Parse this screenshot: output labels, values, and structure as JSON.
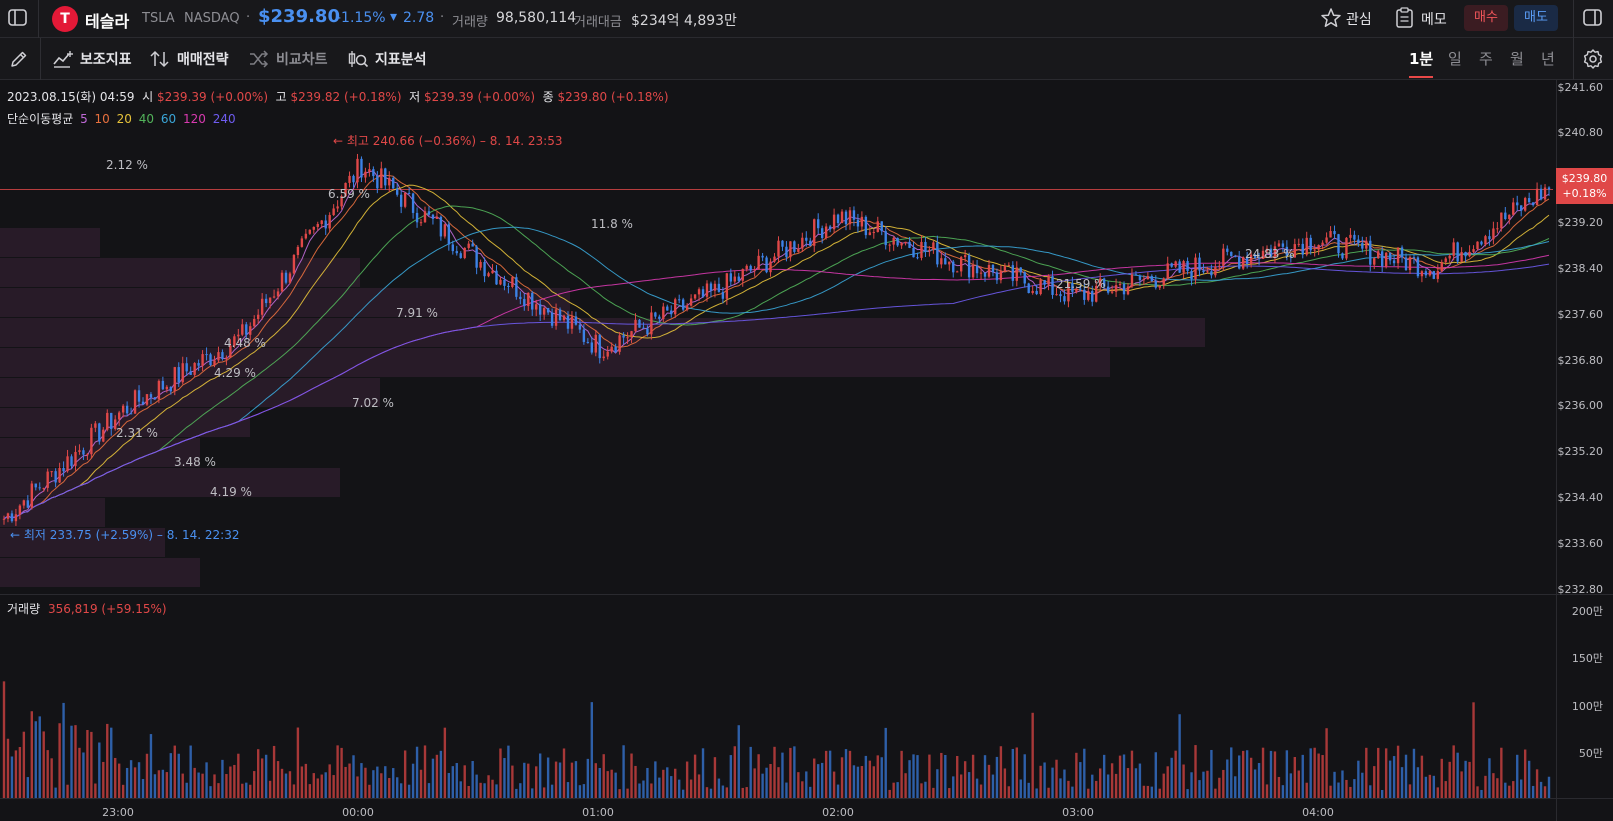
{
  "header": {
    "stock_name": "테슬라",
    "ticker": "TSLA",
    "exchange": "NASDAQ",
    "separator": "·",
    "price": "$239.80",
    "change_pct": "-1.15%",
    "change_arrow": "▾",
    "change_abs": "2.78",
    "volume_label": "거래량",
    "volume_value": "98,580,114",
    "turnover_label": "거래대금",
    "turnover_value": "$234억 4,893만",
    "favorite_label": "관심",
    "memo_label": "메모",
    "buy_label": "매수",
    "sell_label": "매도",
    "logo_letter": "T"
  },
  "toolbar": {
    "indicators_label": "보조지표",
    "strategy_label": "매매전략",
    "compare_label": "비교차트",
    "analysis_label": "지표분석",
    "timeframes": [
      "1분",
      "일",
      "주",
      "월",
      "년"
    ],
    "active_timeframe": "1분"
  },
  "ohlc": {
    "date": "2023.08.15(화) 04:59",
    "open_label": "시",
    "open": "$239.39 (+0.00%)",
    "high_label": "고",
    "high": "$239.82 (+0.18%)",
    "low_label": "저",
    "low": "$239.39 (+0.00%)",
    "close_label": "종",
    "close": "$239.80 (+0.18%)"
  },
  "ma_legend": {
    "label": "단순이동평균",
    "periods": [
      "5",
      "10",
      "20",
      "40",
      "60",
      "120",
      "240"
    ],
    "colors": [
      "#c06ad8",
      "#e8703e",
      "#e6c23a",
      "#52b35a",
      "#3aa6d8",
      "#d83ab0",
      "#6f5cf0"
    ]
  },
  "annotations": {
    "high_marker": "← 최고 240.66 (−0.36%) – 8. 14. 23:53",
    "low_marker": "← 최저 233.75 (+2.59%) – 8. 14. 22:32",
    "price_tag_price": "$239.80",
    "price_tag_pct": "+0.18%"
  },
  "volume_profile": {
    "labels": [
      "2.12 %",
      "6.59 %",
      "11.8 %",
      "24.83 %",
      "21.59 %",
      "7.91 %",
      "4.48 %",
      "4.29 %",
      "7.02 %",
      "2.31 %",
      "3.48 %",
      "4.19 %"
    ]
  },
  "volume_panel": {
    "label": "거래량",
    "value": "356,819 (+59.15%)",
    "axis": [
      "200만",
      "150만",
      "100만",
      "50만"
    ]
  },
  "price_axis": [
    "$241.60",
    "$240.80",
    "$239.20",
    "$238.40",
    "$237.60",
    "$236.80",
    "$236.00",
    "$235.20",
    "$234.40",
    "$233.60",
    "$232.80"
  ],
  "time_axis": [
    "23:00",
    "00:00",
    "01:00",
    "02:00",
    "03:00",
    "04:00"
  ],
  "colors": {
    "up": "#e04848",
    "down": "#3c82e6",
    "price_blue": "#4a90f0",
    "background": "#131316"
  },
  "chart_data": {
    "type": "candlestick",
    "symbol": "TSLA",
    "interval": "1분",
    "price_range": [
      232.8,
      241.6
    ],
    "x": [
      "22:30",
      "23:00",
      "23:30",
      "00:00",
      "00:30",
      "01:00",
      "01:30",
      "02:00",
      "02:30",
      "03:00",
      "03:30",
      "04:00",
      "04:30",
      "04:59"
    ],
    "close": [
      234.0,
      235.9,
      237.2,
      240.2,
      238.5,
      237.0,
      238.0,
      239.3,
      238.5,
      237.9,
      238.4,
      238.9,
      238.4,
      239.8
    ],
    "high": 240.66,
    "low": 233.75
  }
}
